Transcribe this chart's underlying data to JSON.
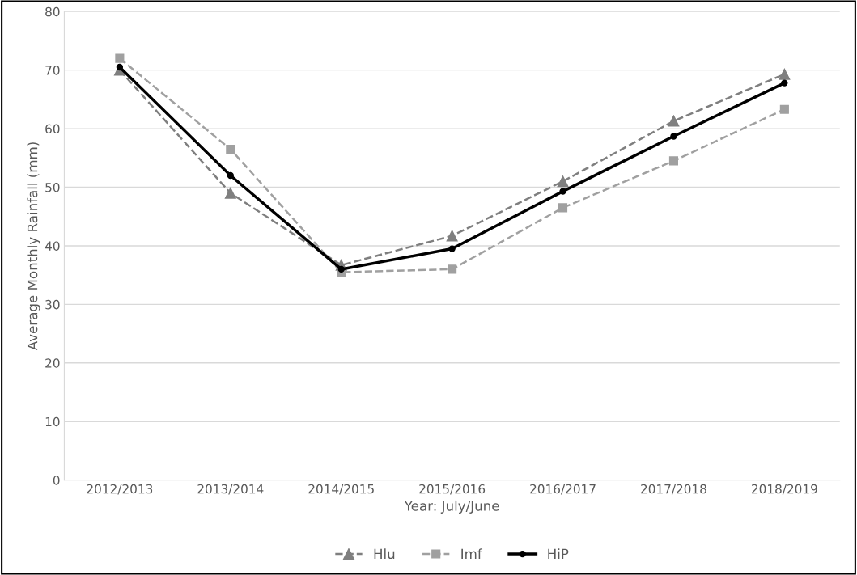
{
  "chart_data": {
    "type": "line",
    "xlabel": "Year: July/June",
    "ylabel": "Average Monthly Rainfall (mm)",
    "categories": [
      "2012/2013",
      "2013/2014",
      "2014/2015",
      "2015/2016",
      "2016/2017",
      "2017/2018",
      "2018/2019"
    ],
    "series": [
      {
        "name": "Hlu",
        "color": "#7f7f7f",
        "marker": "triangle",
        "line_style": "dashed",
        "values": [
          70,
          49,
          36.7,
          41.7,
          51,
          61.3,
          69.3
        ]
      },
      {
        "name": "Imf",
        "color": "#a0a0a0",
        "marker": "square",
        "line_style": "dashed",
        "values": [
          72,
          56.5,
          35.5,
          36,
          46.5,
          54.5,
          63.3
        ]
      },
      {
        "name": "HiP",
        "color": "#000000",
        "marker": "circle",
        "line_style": "solid",
        "values": [
          70.5,
          52,
          36,
          39.5,
          49.3,
          58.7,
          67.8
        ]
      }
    ],
    "ylim": [
      0,
      80
    ],
    "yticks": [
      0,
      10,
      20,
      30,
      40,
      50,
      60,
      70,
      80
    ],
    "grid": "y",
    "legend": "bottom"
  }
}
